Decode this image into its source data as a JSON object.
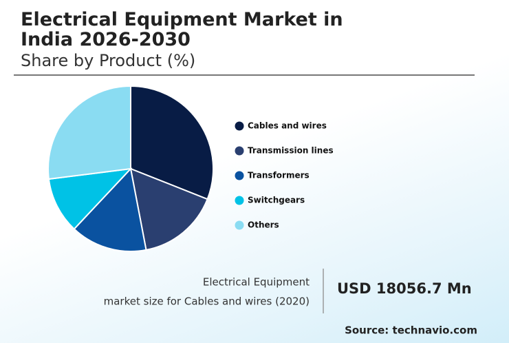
{
  "chart_data": {
    "type": "pie",
    "title": "Electrical Equipment Market in India 2026-2030",
    "subtitle": "Share by Product (%)",
    "categories": [
      "Cables and wires",
      "Transmission lines",
      "Transformers",
      "Switchgears",
      "Others"
    ],
    "values": [
      31,
      16,
      15,
      11,
      27
    ],
    "colors": [
      "#081c45",
      "#2a3f70",
      "#0a52a0",
      "#00c2e6",
      "#8adcf2"
    ],
    "legend": "right"
  },
  "callout": {
    "label_lines": [
      "Electrical Equipment",
      "market size for Cables and wires (2020)"
    ],
    "value": "USD 18056.7 Mn"
  },
  "source": "Source: technavio.com"
}
